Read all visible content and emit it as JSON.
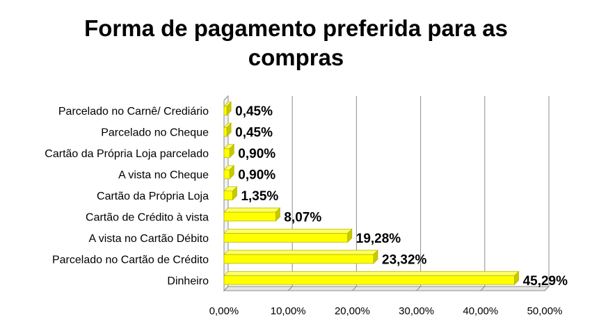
{
  "chart_data": {
    "type": "bar",
    "orientation": "horizontal",
    "title_lines": [
      "Forma de pagamento preferida para as",
      "compras"
    ],
    "categories": [
      "Parcelado no Carnê/ Crediário",
      "Parcelado no Cheque",
      "Cartão da Própria Loja parcelado",
      "A vista no Cheque",
      "Cartão da Própria Loja",
      "Cartão de Crédito à vista",
      "A vista no Cartão Débito",
      "Parcelado no Cartão de Crédito",
      "Dinheiro"
    ],
    "values": [
      0.45,
      0.45,
      0.9,
      0.9,
      1.35,
      8.07,
      19.28,
      23.32,
      45.29
    ],
    "data_labels": [
      "0,45%",
      "0,45%",
      "0,90%",
      "0,90%",
      "1,35%",
      "8,07%",
      "19,28%",
      "23,32%",
      "45,29%"
    ],
    "xlim": [
      0,
      50
    ],
    "xticks": [
      0,
      10,
      20,
      30,
      40,
      50
    ],
    "xtick_labels": [
      "0,00%",
      "10,00%",
      "20,00%",
      "30,00%",
      "40,00%",
      "50,00%"
    ],
    "grid": "vertical",
    "legend": "none",
    "bar_color": "#FFFF00",
    "bar_edge_color": "#B8B800",
    "bar_3d": true
  }
}
